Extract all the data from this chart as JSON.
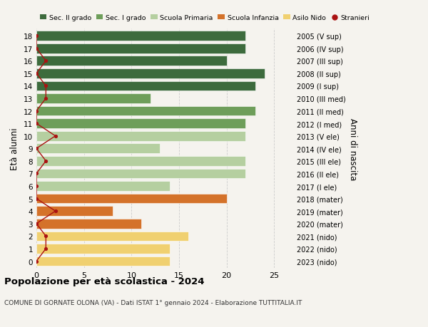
{
  "ages": [
    18,
    17,
    16,
    15,
    14,
    13,
    12,
    11,
    10,
    9,
    8,
    7,
    6,
    5,
    4,
    3,
    2,
    1,
    0
  ],
  "right_labels": [
    "2005 (V sup)",
    "2006 (IV sup)",
    "2007 (III sup)",
    "2008 (II sup)",
    "2009 (I sup)",
    "2010 (III med)",
    "2011 (II med)",
    "2012 (I med)",
    "2013 (V ele)",
    "2014 (IV ele)",
    "2015 (III ele)",
    "2016 (II ele)",
    "2017 (I ele)",
    "2018 (mater)",
    "2019 (mater)",
    "2020 (mater)",
    "2021 (nido)",
    "2022 (nido)",
    "2023 (nido)"
  ],
  "bar_values": [
    22,
    22,
    20,
    24,
    23,
    12,
    23,
    22,
    22,
    13,
    22,
    22,
    14,
    20,
    8,
    11,
    16,
    14,
    14
  ],
  "bar_colors": [
    "#3d6b3d",
    "#3d6b3d",
    "#3d6b3d",
    "#3d6b3d",
    "#3d6b3d",
    "#6e9e5a",
    "#6e9e5a",
    "#6e9e5a",
    "#b5cfa0",
    "#b5cfa0",
    "#b5cfa0",
    "#b5cfa0",
    "#b5cfa0",
    "#d4722a",
    "#d4722a",
    "#d4722a",
    "#f0d070",
    "#f0d070",
    "#f0d070"
  ],
  "stranieri_values": [
    0,
    0,
    1,
    0,
    1,
    1,
    0,
    0,
    2,
    0,
    1,
    0,
    0,
    0,
    2,
    0,
    1,
    1,
    0
  ],
  "legend_labels": [
    "Sec. II grado",
    "Sec. I grado",
    "Scuola Primaria",
    "Scuola Infanzia",
    "Asilo Nido",
    "Stranieri"
  ],
  "legend_colors": [
    "#3d6b3d",
    "#6e9e5a",
    "#b5cfa0",
    "#d4722a",
    "#f0d070",
    "#aa1111"
  ],
  "ylabel_left": "Età alunni",
  "ylabel_right": "Anni di nascita",
  "title": "Popolazione per età scolastica - 2024",
  "subtitle": "COMUNE DI GORNATE OLONA (VA) - Dati ISTAT 1° gennaio 2024 - Elaborazione TUTTITALIA.IT",
  "xlim": [
    0,
    27
  ],
  "xticks": [
    0,
    5,
    10,
    15,
    20,
    25
  ],
  "bg_color": "#f5f3ee",
  "grid_color": "#cccccc",
  "bar_height": 0.78
}
